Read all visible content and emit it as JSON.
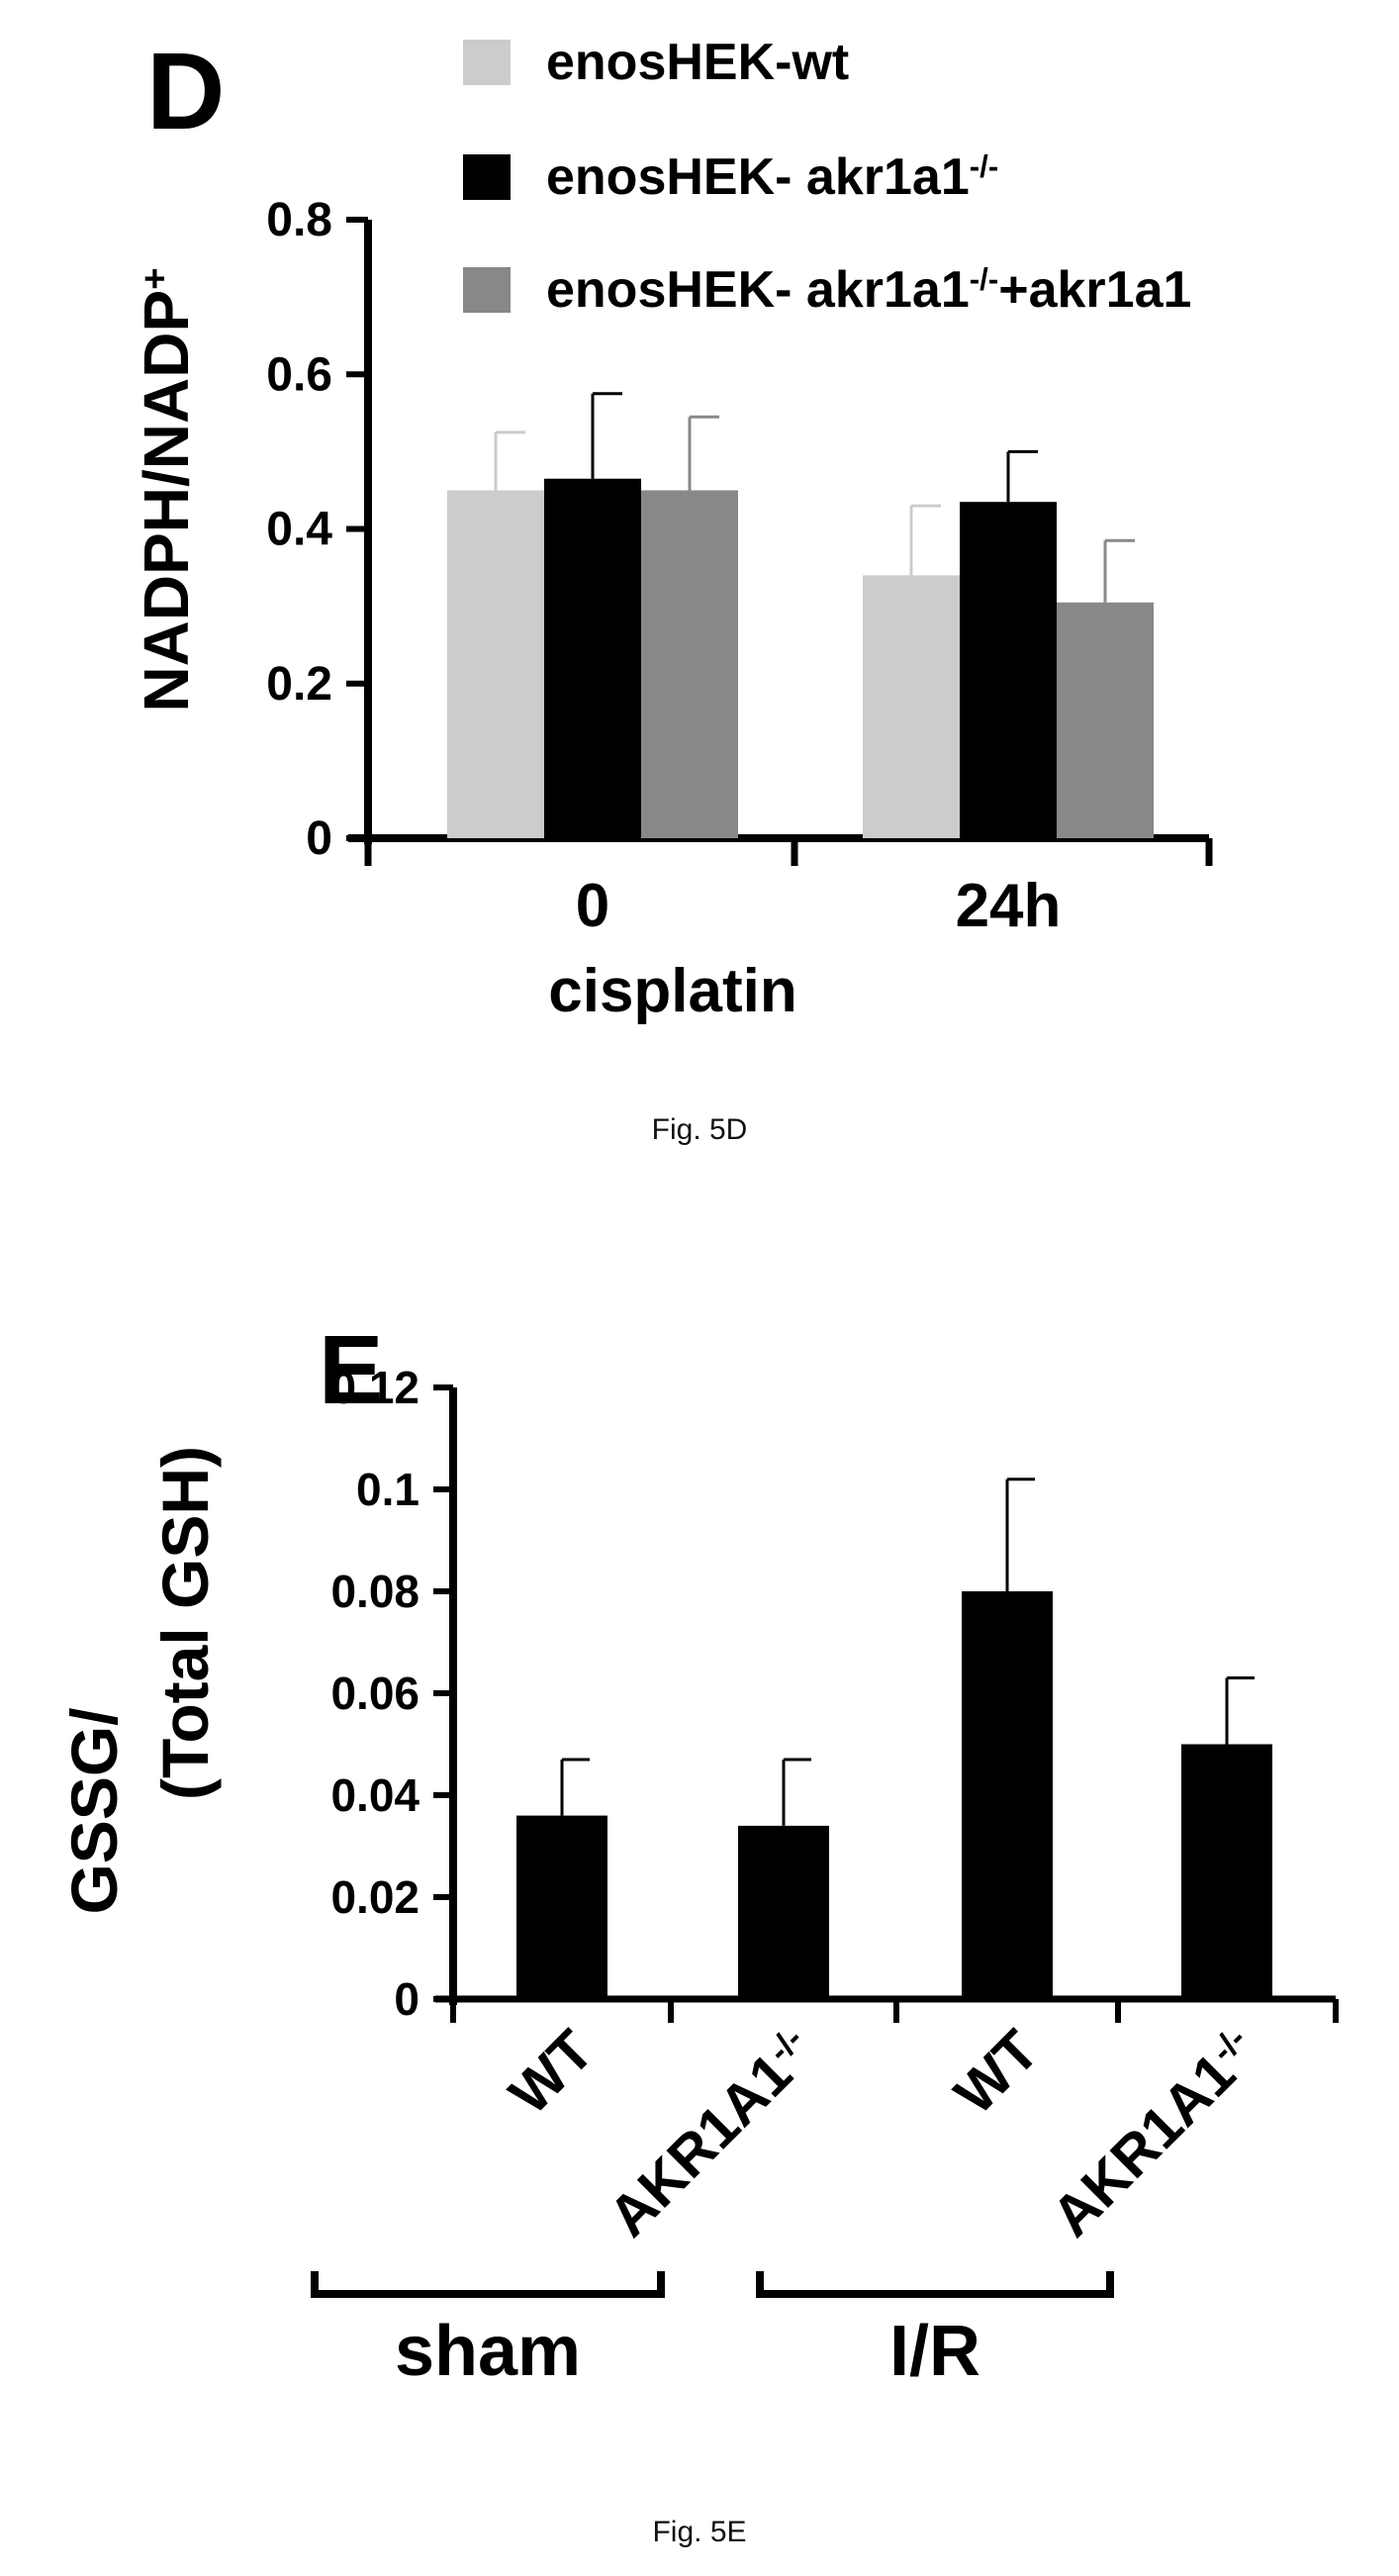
{
  "charts": [
    {
      "panel_letter": "D",
      "caption": "Fig. 5D",
      "chart_data": {
        "type": "bar",
        "ylabel": "NADPH/NADP",
        "ylabel_sup": "+",
        "xlabel": "cisplatin",
        "ylim": [
          0,
          0.8
        ],
        "yticks": [
          "0",
          "0.2",
          "0.4",
          "0.6",
          "0.8"
        ],
        "categories": [
          "0",
          "24h"
        ],
        "series": [
          {
            "name": "enosHEK-wt",
            "color": "#cccccc",
            "values": [
              0.45,
              0.34
            ],
            "errors": [
              0.075,
              0.09
            ]
          },
          {
            "name": "enosHEK- akr1a1",
            "name_sup": "-/-",
            "color": "#000000",
            "values": [
              0.465,
              0.435
            ],
            "errors": [
              0.11,
              0.065
            ]
          },
          {
            "name": "enosHEK- akr1a1",
            "name_sup": "-/-",
            "name_suffix": "+akr1a1",
            "color": "#888888",
            "values": [
              0.45,
              0.305
            ],
            "errors": [
              0.095,
              0.08
            ]
          }
        ],
        "legend_position": "top",
        "grid": false
      }
    },
    {
      "panel_letter": "E",
      "caption": "Fig. 5E",
      "chart_data": {
        "type": "bar",
        "ylabel_line1": "GSSG/",
        "ylabel_line2": "(Total GSH)",
        "ylim": [
          0,
          0.12
        ],
        "yticks": [
          "0",
          "0.02",
          "0.04",
          "0.06",
          "0.08",
          "0.1",
          "0.12"
        ],
        "categories": [
          {
            "label": "WT",
            "sup": ""
          },
          {
            "label": "AKR1A1",
            "sup": "-/-"
          },
          {
            "label": "WT",
            "sup": ""
          },
          {
            "label": "AKR1A1",
            "sup": "-/-"
          }
        ],
        "groups": [
          {
            "label": "sham",
            "span": [
              0,
              1
            ]
          },
          {
            "label": "I/R",
            "span": [
              2,
              3
            ]
          }
        ],
        "series": [
          {
            "color": "#000000",
            "values": [
              0.036,
              0.034,
              0.08,
              0.05
            ],
            "errors": [
              0.011,
              0.013,
              0.022,
              0.013
            ]
          }
        ],
        "grid": false
      }
    }
  ]
}
